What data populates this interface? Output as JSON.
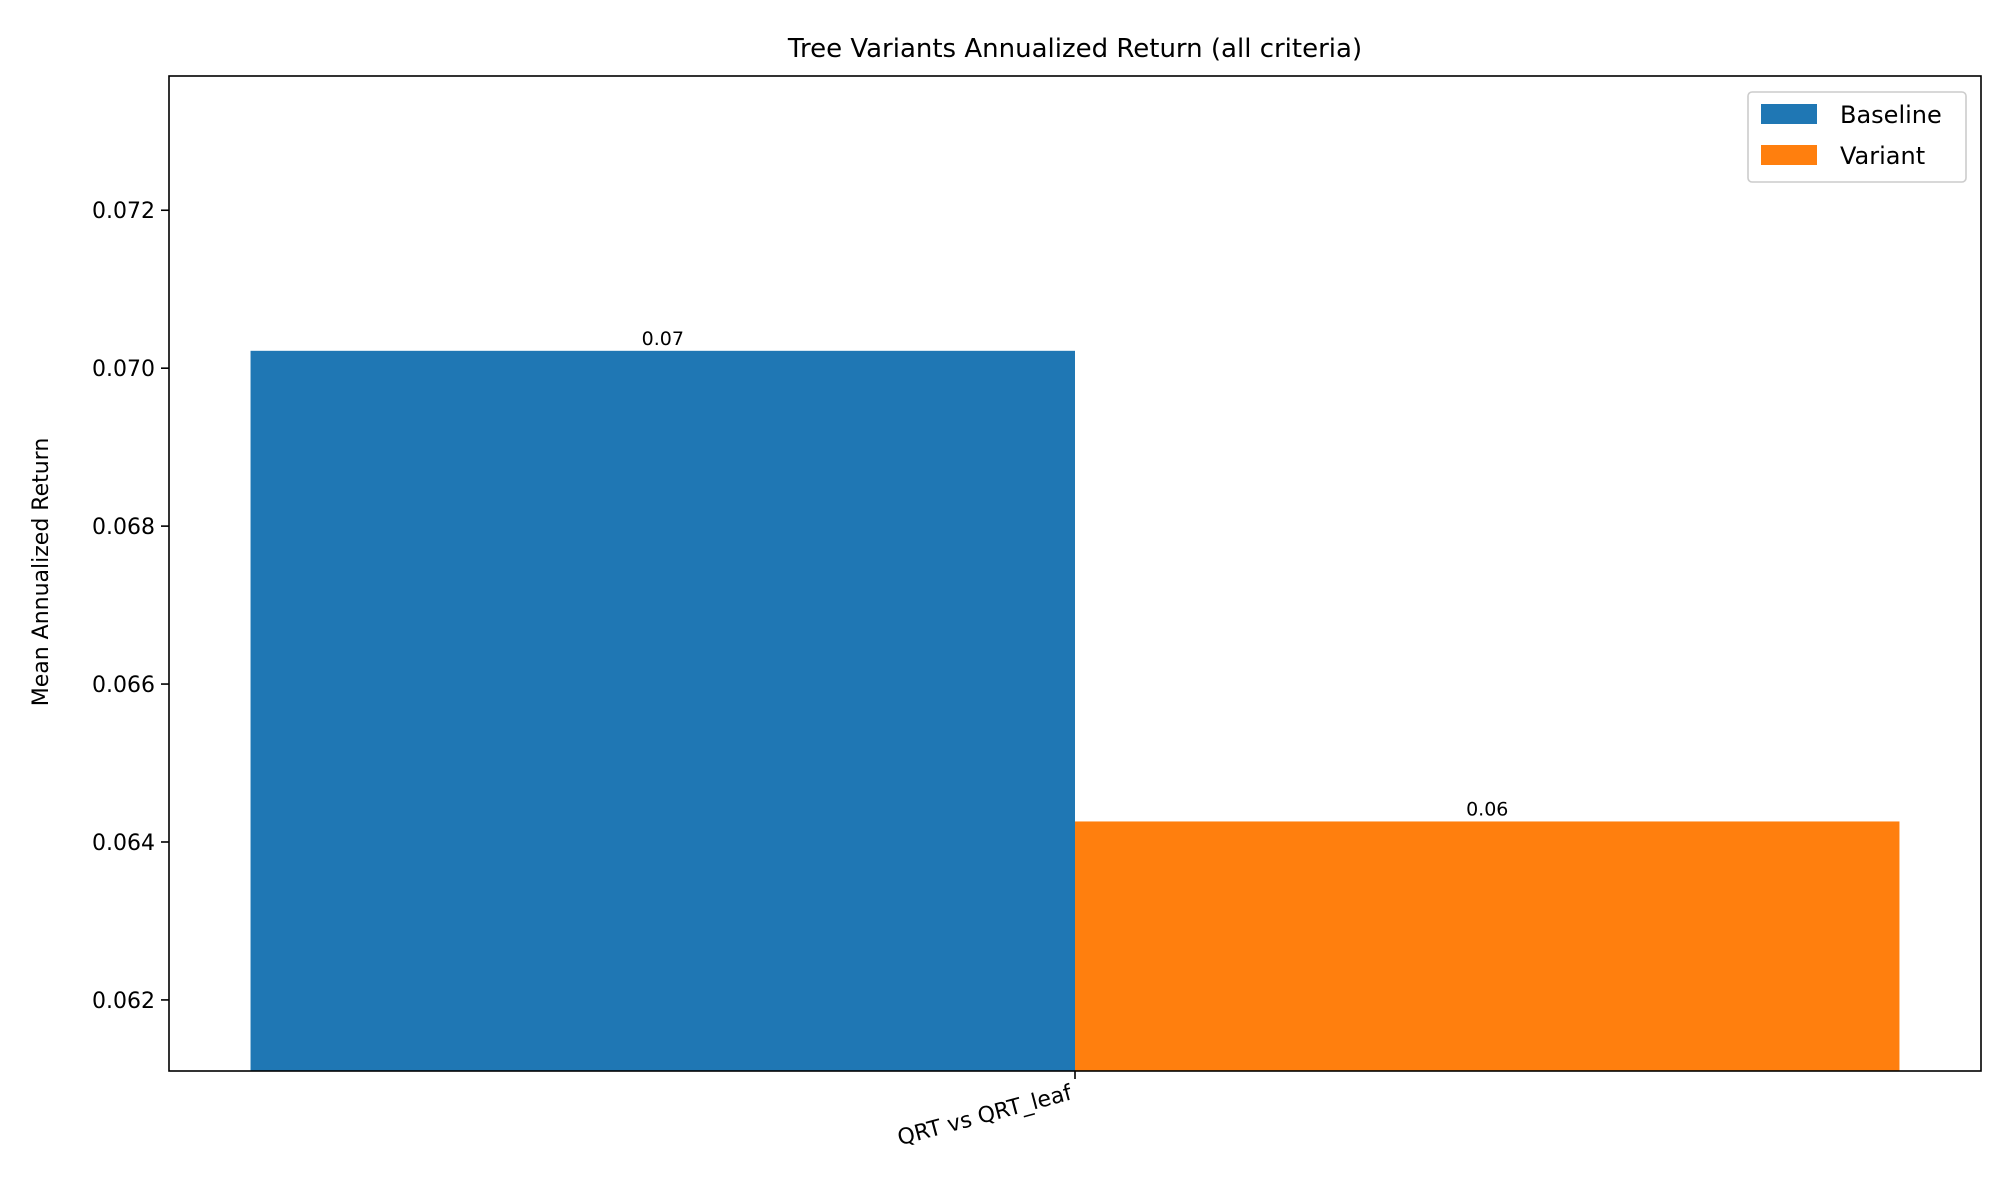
{
  "chart_data": {
    "type": "bar",
    "title": "Tree Variants Annualized Return (all criteria)",
    "xlabel": "",
    "ylabel": "Mean Annualized Return",
    "categories": [
      "QRT vs QRT_leaf"
    ],
    "series": [
      {
        "name": "Baseline",
        "values": [
          0.07022
        ],
        "color": "#1f77b4",
        "label": "0.07"
      },
      {
        "name": "Variant",
        "values": [
          0.06426
        ],
        "color": "#ff7f0e",
        "label": "0.06"
      }
    ],
    "ylim": [
      0.0611,
      0.0737
    ],
    "yticks": [
      {
        "value": 0.062,
        "label": "0.062"
      },
      {
        "value": 0.064,
        "label": "0.064"
      },
      {
        "value": 0.066,
        "label": "0.066"
      },
      {
        "value": 0.068,
        "label": "0.068"
      },
      {
        "value": 0.07,
        "label": "0.070"
      },
      {
        "value": 0.072,
        "label": "0.072"
      }
    ],
    "grid": false,
    "legend": "top-right"
  }
}
